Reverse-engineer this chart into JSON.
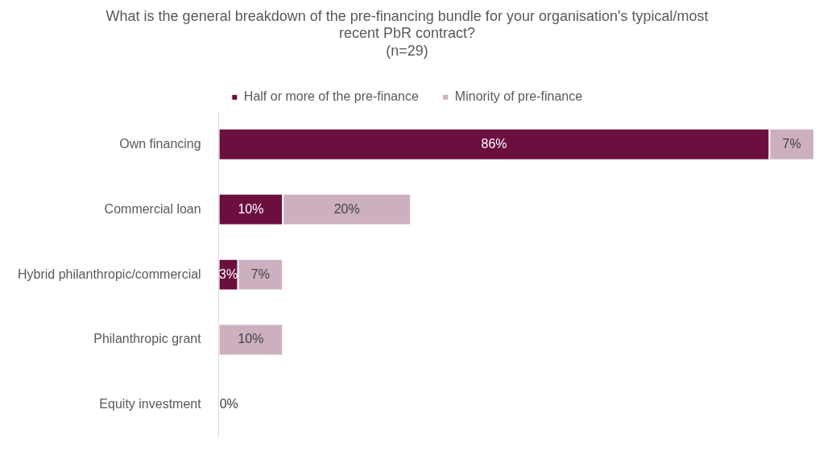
{
  "chart_data": {
    "type": "bar",
    "orientation": "horizontal",
    "stacked": true,
    "title": "What is the general breakdown of the pre-financing bundle for your organisation's typical/most recent PbR contract?",
    "subtitle": "(n=29)",
    "categories": [
      "Own financing",
      "Commercial loan",
      "Hybrid philanthropic/commercial",
      "Philanthropic grant",
      "Equity investment"
    ],
    "series": [
      {
        "name": "Half or more of the pre-finance",
        "color": "#6b0f3f",
        "values": [
          86,
          10,
          3,
          0,
          0
        ],
        "value_labels": [
          "86%",
          "10%",
          "3%",
          null,
          "0%"
        ]
      },
      {
        "name": "Minority of pre-finance",
        "color": "#cdb0c0",
        "values": [
          7,
          20,
          7,
          10,
          0
        ],
        "value_labels": [
          "7%",
          "20%",
          "7%",
          "10%",
          null
        ]
      }
    ],
    "xlim": [
      0,
      93
    ],
    "legend": "top",
    "tick_labels": "y"
  }
}
